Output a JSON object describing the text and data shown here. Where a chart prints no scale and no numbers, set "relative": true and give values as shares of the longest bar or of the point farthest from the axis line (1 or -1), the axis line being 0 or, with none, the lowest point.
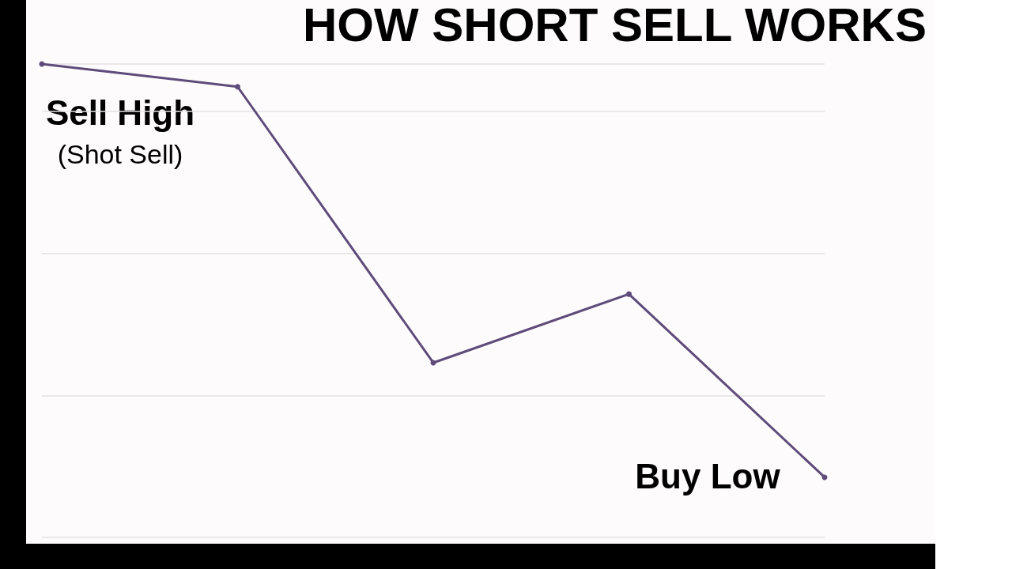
{
  "chart_data": {
    "type": "line",
    "title": "HOW SHORT SELL WORKS",
    "categories": [
      null,
      null,
      null,
      null,
      null
    ],
    "values": [
      1,
      0.952,
      0.369,
      0.514,
      0.127
    ],
    "color": "#5e4b7a",
    "relative": true,
    "grid": "y",
    "marker": "circle",
    "line_style": "solid",
    "annotations": [
      "Sell High",
      "(Shot Sell)",
      "Buy Low"
    ]
  }
}
